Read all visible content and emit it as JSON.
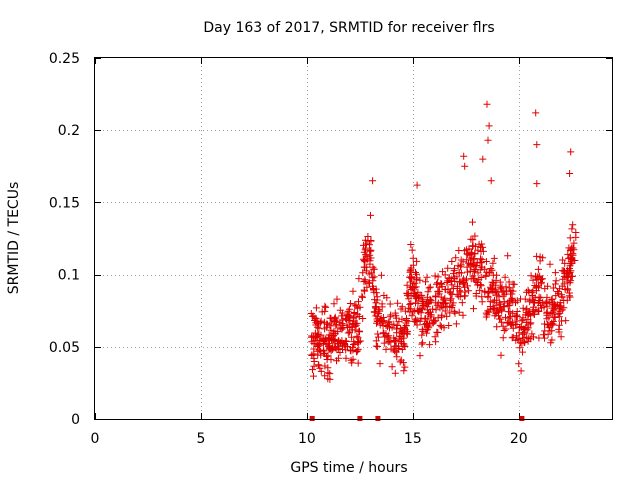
{
  "chart_data": {
    "type": "scatter",
    "title": "Day 163 of 2017, SRMTID for receiver flrs",
    "xlabel": "GPS time / hours",
    "ylabel": "SRMTID / TECUs",
    "xlim": [
      0,
      24.4
    ],
    "ylim": [
      0,
      0.25
    ],
    "x_ticks": [
      0,
      5,
      10,
      15,
      20
    ],
    "y_ticks": [
      0,
      0.05,
      0.1,
      0.15,
      0.2,
      0.25
    ],
    "x_tick_labels": [
      "0",
      "5",
      "10",
      "15",
      "20"
    ],
    "y_tick_labels": [
      "0",
      "0.05",
      "0.1",
      "0.15",
      "0.2",
      "0.25"
    ],
    "grid": true,
    "legend": "none",
    "marker": "+",
    "color": "#e00000",
    "zero_markers_x": [
      10.25,
      12.5,
      13.35,
      20.15
    ],
    "series_profile": [
      {
        "x": 10.2,
        "y": 0.055
      },
      {
        "x": 10.6,
        "y": 0.06
      },
      {
        "x": 11.0,
        "y": 0.05
      },
      {
        "x": 11.5,
        "y": 0.06
      },
      {
        "x": 12.0,
        "y": 0.065
      },
      {
        "x": 12.4,
        "y": 0.06
      },
      {
        "x": 12.7,
        "y": 0.1
      },
      {
        "x": 13.0,
        "y": 0.12
      },
      {
        "x": 13.3,
        "y": 0.07
      },
      {
        "x": 13.8,
        "y": 0.06
      },
      {
        "x": 14.2,
        "y": 0.055
      },
      {
        "x": 14.6,
        "y": 0.05
      },
      {
        "x": 14.9,
        "y": 0.1
      },
      {
        "x": 15.3,
        "y": 0.075
      },
      {
        "x": 15.8,
        "y": 0.07
      },
      {
        "x": 16.2,
        "y": 0.08
      },
      {
        "x": 16.8,
        "y": 0.09
      },
      {
        "x": 17.3,
        "y": 0.1
      },
      {
        "x": 17.8,
        "y": 0.11
      },
      {
        "x": 18.3,
        "y": 0.1
      },
      {
        "x": 18.8,
        "y": 0.085
      },
      {
        "x": 19.3,
        "y": 0.08
      },
      {
        "x": 19.8,
        "y": 0.075
      },
      {
        "x": 20.2,
        "y": 0.06
      },
      {
        "x": 20.6,
        "y": 0.08
      },
      {
        "x": 21.0,
        "y": 0.09
      },
      {
        "x": 21.5,
        "y": 0.07
      },
      {
        "x": 21.9,
        "y": 0.08
      },
      {
        "x": 22.3,
        "y": 0.1
      },
      {
        "x": 22.7,
        "y": 0.12
      }
    ],
    "series_spread": 0.025,
    "series_points": 1100,
    "series_seed": 163,
    "outliers": [
      {
        "x": 18.5,
        "y": 0.218
      },
      {
        "x": 20.8,
        "y": 0.212
      },
      {
        "x": 18.6,
        "y": 0.203
      },
      {
        "x": 20.85,
        "y": 0.19
      },
      {
        "x": 18.55,
        "y": 0.193
      },
      {
        "x": 22.45,
        "y": 0.185
      },
      {
        "x": 17.4,
        "y": 0.182
      },
      {
        "x": 17.45,
        "y": 0.175
      },
      {
        "x": 18.3,
        "y": 0.18
      },
      {
        "x": 13.1,
        "y": 0.165
      },
      {
        "x": 20.85,
        "y": 0.163
      },
      {
        "x": 15.2,
        "y": 0.162
      },
      {
        "x": 18.7,
        "y": 0.165
      },
      {
        "x": 22.4,
        "y": 0.17
      }
    ]
  }
}
